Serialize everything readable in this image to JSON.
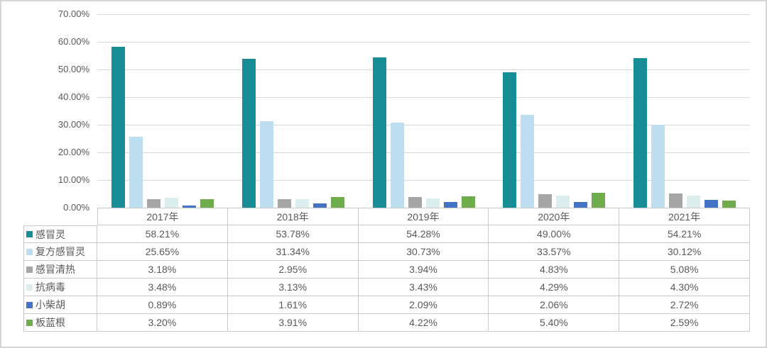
{
  "chart_data": {
    "type": "bar",
    "title": "",
    "xlabel": "",
    "ylabel": "",
    "categories": [
      "2017年",
      "2018年",
      "2019年",
      "2020年",
      "2021年"
    ],
    "series": [
      {
        "name": "感冒灵",
        "color": "#178e96",
        "values": [
          58.21,
          53.78,
          54.28,
          49.0,
          54.21
        ]
      },
      {
        "name": "复方感冒灵",
        "color": "#bddef0",
        "values": [
          25.65,
          31.34,
          30.73,
          33.57,
          30.12
        ]
      },
      {
        "name": "感冒清热",
        "color": "#a6a6a6",
        "values": [
          3.18,
          2.95,
          3.94,
          4.83,
          5.08
        ]
      },
      {
        "name": "抗病毒",
        "color": "#dcedee",
        "values": [
          3.48,
          3.13,
          3.43,
          4.29,
          4.3
        ]
      },
      {
        "name": "小柴胡",
        "color": "#4472c4",
        "values": [
          0.89,
          1.61,
          2.09,
          2.06,
          2.72
        ]
      },
      {
        "name": "板蓝根",
        "color": "#6fac4b",
        "values": [
          3.2,
          3.91,
          4.22,
          5.4,
          2.59
        ]
      }
    ],
    "y_axis": {
      "min": 0,
      "max": 70,
      "step": 10,
      "unit": "%",
      "ticks": [
        "70.00%",
        "60.00%",
        "50.00%",
        "40.00%",
        "30.00%",
        "20.00%",
        "10.00%",
        "0.00%"
      ]
    },
    "grid": true,
    "legend_position": "data-table-left-column",
    "colors": {
      "gridline": "#d9d9d9",
      "table_border": "#c9c9c9",
      "text": "#595959"
    }
  },
  "table": {
    "corner_label": "",
    "header": [
      "2017年",
      "2018年",
      "2019年",
      "2020年",
      "2021年"
    ],
    "rows": [
      {
        "label": "感冒灵",
        "color": "#178e96",
        "cells": [
          "58.21%",
          "53.78%",
          "54.28%",
          "49.00%",
          "54.21%"
        ]
      },
      {
        "label": "复方感冒灵",
        "color": "#bddef0",
        "cells": [
          "25.65%",
          "31.34%",
          "30.73%",
          "33.57%",
          "30.12%"
        ]
      },
      {
        "label": "感冒清热",
        "color": "#a6a6a6",
        "cells": [
          "3.18%",
          "2.95%",
          "3.94%",
          "4.83%",
          "5.08%"
        ]
      },
      {
        "label": "抗病毒",
        "color": "#dcedee",
        "cells": [
          "3.48%",
          "3.13%",
          "3.43%",
          "4.29%",
          "4.30%"
        ]
      },
      {
        "label": "小柴胡",
        "color": "#4472c4",
        "cells": [
          "0.89%",
          "1.61%",
          "2.09%",
          "2.06%",
          "2.72%"
        ]
      },
      {
        "label": "板蓝根",
        "color": "#6fac4b",
        "cells": [
          "3.20%",
          "3.91%",
          "4.22%",
          "5.40%",
          "2.59%"
        ]
      }
    ]
  }
}
